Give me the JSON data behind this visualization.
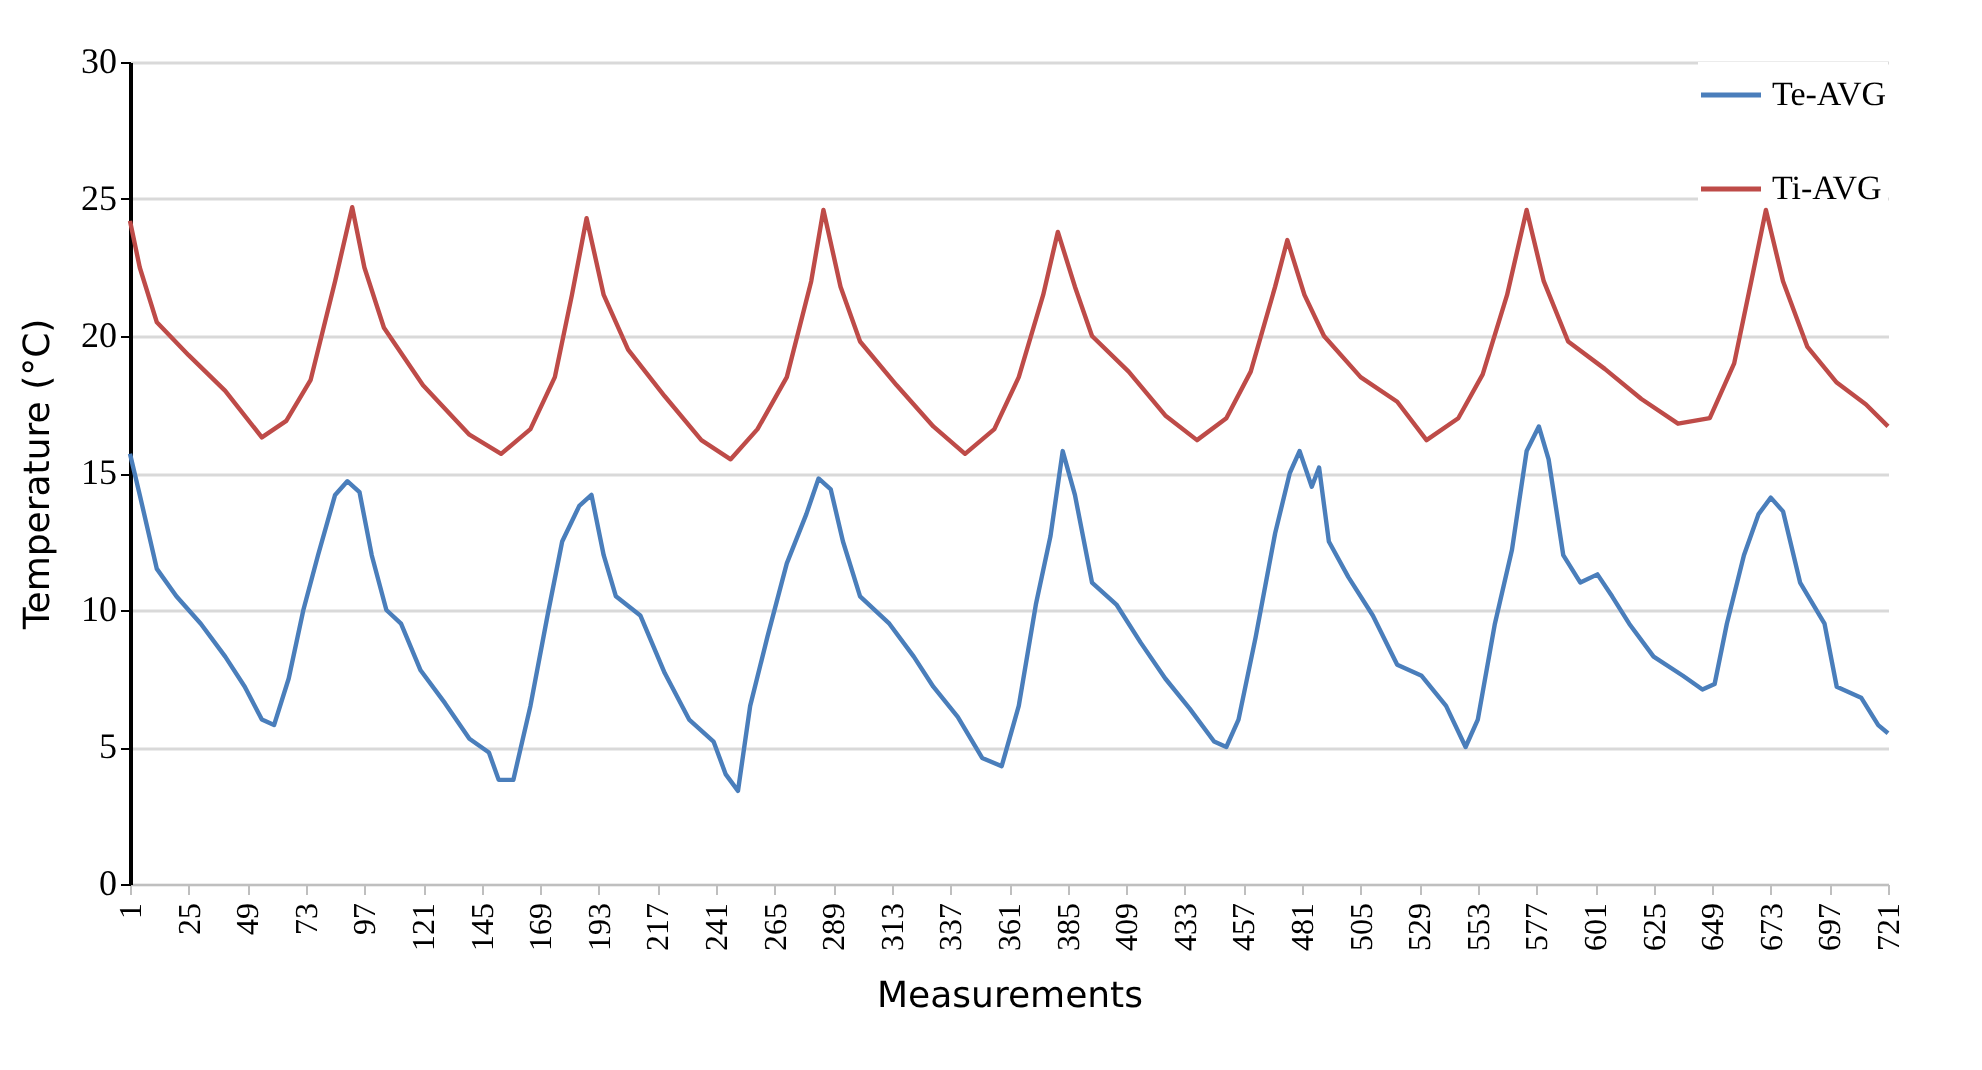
{
  "chart_data": {
    "type": "line",
    "xlabel": "Measurements",
    "ylabel": "Temperature (°C)",
    "xlim": [
      1,
      721
    ],
    "xticks": [
      1,
      25,
      49,
      73,
      97,
      121,
      145,
      169,
      193,
      217,
      241,
      265,
      289,
      313,
      337,
      361,
      385,
      409,
      433,
      457,
      481,
      505,
      529,
      553,
      577,
      601,
      625,
      649,
      673,
      697,
      721
    ],
    "ylim": [
      0,
      30
    ],
    "yticks": [
      0,
      5,
      10,
      15,
      20,
      25,
      30
    ],
    "grid": "y",
    "legend": "top right",
    "marker": "none",
    "line_style": "solid",
    "series": [
      {
        "name": "Te-AVG",
        "color": "#4a7ebb",
        "x": [
          1,
          5,
          12,
          20,
          30,
          40,
          48,
          55,
          60,
          66,
          72,
          78,
          85,
          90,
          95,
          100,
          106,
          112,
          120,
          130,
          140,
          148,
          152,
          158,
          165,
          172,
          178,
          185,
          190,
          195,
          200,
          210,
          220,
          230,
          240,
          245,
          250,
          255,
          262,
          270,
          278,
          283,
          288,
          293,
          300,
          312,
          322,
          330,
          340,
          350,
          358,
          365,
          372,
          378,
          383,
          388,
          395,
          405,
          415,
          425,
          435,
          445,
          450,
          455,
          462,
          470,
          476,
          480,
          485,
          488,
          492,
          500,
          510,
          520,
          530,
          540,
          548,
          553,
          560,
          567,
          573,
          578,
          582,
          588,
          595,
          602,
          608,
          615,
          625,
          637,
          645,
          650,
          655,
          662,
          668,
          673,
          678,
          685,
          695,
          700,
          710,
          717,
          721
        ],
        "values": [
          15.7,
          14.2,
          11.5,
          10.5,
          9.5,
          8.3,
          7.2,
          6.0,
          5.8,
          7.5,
          10,
          12,
          14.2,
          14.7,
          14.3,
          12,
          10,
          9.5,
          7.8,
          6.6,
          5.3,
          4.8,
          3.8,
          3.8,
          6.5,
          9.8,
          12.5,
          13.8,
          14.2,
          12,
          10.5,
          9.8,
          7.7,
          6.0,
          5.2,
          4.0,
          3.4,
          6.5,
          9,
          11.7,
          13.5,
          14.8,
          14.4,
          12.5,
          10.5,
          9.5,
          8.3,
          7.2,
          6.1,
          4.6,
          4.3,
          6.5,
          10.2,
          12.7,
          15.8,
          14.2,
          11,
          10.2,
          8.8,
          7.5,
          6.4,
          5.2,
          5.0,
          6,
          9,
          12.8,
          15,
          15.8,
          14.5,
          15.2,
          12.5,
          11.2,
          9.8,
          8,
          7.6,
          6.5,
          5.0,
          6,
          9.5,
          12.2,
          15.8,
          16.7,
          15.5,
          12,
          11,
          11.3,
          10.5,
          9.5,
          8.3,
          7.6,
          7.1,
          7.3,
          9.5,
          12,
          13.5,
          14.1,
          13.6,
          11,
          9.5,
          7.2,
          6.8,
          5.8,
          5.5
        ]
      },
      {
        "name": "Ti-AVG",
        "color": "#be4b48",
        "x": [
          1,
          5,
          12,
          25,
          40,
          55,
          65,
          75,
          85,
          92,
          97,
          105,
          121,
          140,
          153,
          165,
          175,
          182,
          188,
          195,
          205,
          220,
          235,
          247,
          258,
          270,
          280,
          285,
          292,
          300,
          315,
          330,
          343,
          355,
          365,
          375,
          381,
          388,
          395,
          410,
          425,
          438,
          450,
          460,
          470,
          475,
          482,
          490,
          505,
          520,
          532,
          545,
          555,
          565,
          573,
          580,
          590,
          605,
          620,
          635,
          648,
          658,
          665,
          671,
          678,
          688,
          700,
          712,
          721
        ],
        "values": [
          24.2,
          22.5,
          20.5,
          19.3,
          18.0,
          16.3,
          16.9,
          18.4,
          22,
          24.7,
          22.5,
          20.3,
          18.2,
          16.4,
          15.7,
          16.6,
          18.5,
          21.5,
          24.3,
          21.5,
          19.5,
          17.8,
          16.2,
          15.5,
          16.6,
          18.5,
          22,
          24.6,
          21.8,
          19.8,
          18.2,
          16.7,
          15.7,
          16.6,
          18.5,
          21.5,
          23.8,
          21.8,
          20,
          18.7,
          17.1,
          16.2,
          17,
          18.7,
          21.8,
          23.5,
          21.5,
          20,
          18.5,
          17.6,
          16.2,
          17,
          18.6,
          21.5,
          24.6,
          22,
          19.8,
          18.8,
          17.7,
          16.8,
          17,
          19,
          22,
          24.6,
          22,
          19.6,
          18.3,
          17.5,
          16.7
        ]
      }
    ]
  }
}
